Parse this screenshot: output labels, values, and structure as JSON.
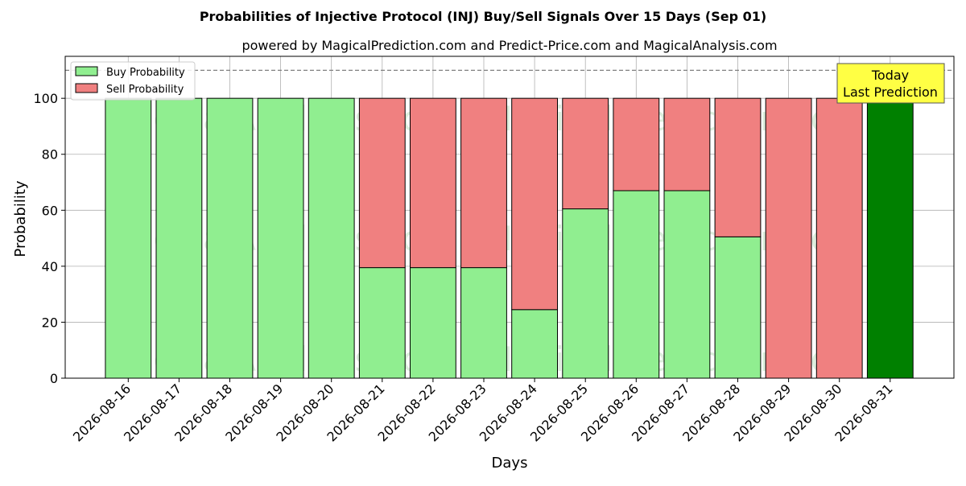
{
  "chart_data": {
    "type": "bar",
    "title": "Probabilities of Injective Protocol (INJ) Buy/Sell Signals Over 15 Days (Sep 01)",
    "subtitle": "powered by MagicalPrediction.com and Predict-Price.com and MagicalAnalysis.com",
    "xlabel": "Days",
    "ylabel": "Probability",
    "ylim": [
      0,
      115
    ],
    "yticks": [
      0,
      20,
      40,
      60,
      80,
      100
    ],
    "reference_line": 110,
    "grid": true,
    "legend_position": "top-left",
    "stacked": true,
    "categories": [
      "2026-08-16",
      "2026-08-17",
      "2026-08-18",
      "2026-08-19",
      "2026-08-20",
      "2026-08-21",
      "2026-08-22",
      "2026-08-23",
      "2026-08-24",
      "2026-08-25",
      "2026-08-26",
      "2026-08-27",
      "2026-08-28",
      "2026-08-29",
      "2026-08-30",
      "2026-08-31"
    ],
    "series": [
      {
        "name": "Buy Probability",
        "color": "#90ee90",
        "values": [
          100,
          100,
          100,
          100,
          100,
          39.5,
          39.5,
          39.5,
          24.5,
          60.5,
          67,
          67,
          50.5,
          0,
          0,
          null
        ]
      },
      {
        "name": "Sell Probability",
        "color": "#f08080",
        "values": [
          0,
          0,
          0,
          0,
          0,
          60.5,
          60.5,
          60.5,
          75.5,
          39.5,
          33,
          33,
          49.5,
          100,
          100,
          null
        ]
      }
    ],
    "today_bar": {
      "category": "2026-08-31",
      "value": 100,
      "color": "#008000"
    },
    "annotation": {
      "lines": [
        "Today",
        "Last Prediction"
      ],
      "background": "#ffff44"
    },
    "watermarks": [
      "MagicalAnalysis.com",
      "MagicalPrediction.com"
    ]
  }
}
